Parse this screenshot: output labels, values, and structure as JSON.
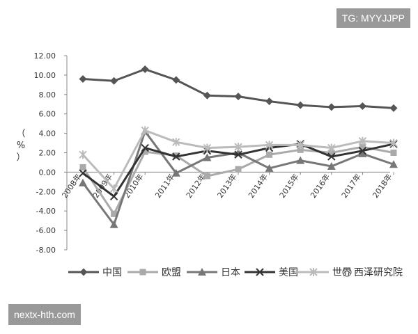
{
  "badges": {
    "top": "TG: MYYJJPP",
    "bottom": "nextx-hth.com"
  },
  "watermark": "西泽研究院",
  "chart_data": {
    "type": "line",
    "title": "",
    "ylabel": "（%）",
    "xlabel": "",
    "ylim": [
      -8,
      12
    ],
    "y_ticks": [
      "12.00",
      "10.00",
      "8.00",
      "6.00",
      "4.00",
      "2.00",
      "0.00",
      "-2.00",
      "-4.00",
      "-6.00",
      "-8.00"
    ],
    "categories": [
      "2008年",
      "2009年",
      "2010年",
      "2011年",
      "2012年",
      "2013年",
      "2014年",
      "2015年",
      "2016年",
      "2017年",
      "2018年"
    ],
    "legend_position": "bottom",
    "grid": false,
    "series": [
      {
        "name": "中国",
        "color": "#555555",
        "marker": "diamond",
        "values": [
          9.6,
          9.4,
          10.6,
          9.5,
          7.9,
          7.8,
          7.3,
          6.9,
          6.7,
          6.8,
          6.6
        ]
      },
      {
        "name": "欧盟",
        "color": "#aaaaaa",
        "marker": "square",
        "values": [
          0.5,
          -4.3,
          2.1,
          1.7,
          -0.4,
          0.3,
          1.8,
          2.3,
          2.0,
          2.6,
          2.0
        ]
      },
      {
        "name": "日本",
        "color": "#777777",
        "marker": "triangle",
        "values": [
          -1.1,
          -5.4,
          4.2,
          -0.1,
          1.5,
          2.0,
          0.4,
          1.2,
          0.6,
          1.9,
          0.8
        ]
      },
      {
        "name": "美国",
        "color": "#333333",
        "marker": "x",
        "values": [
          -0.1,
          -2.5,
          2.5,
          1.6,
          2.2,
          1.8,
          2.5,
          2.9,
          1.6,
          2.2,
          2.9
        ]
      },
      {
        "name": "世界",
        "color": "#bbbbbb",
        "marker": "asterisk",
        "values": [
          1.8,
          -1.7,
          4.3,
          3.1,
          2.5,
          2.6,
          2.8,
          2.8,
          2.5,
          3.2,
          3.0
        ]
      }
    ]
  }
}
